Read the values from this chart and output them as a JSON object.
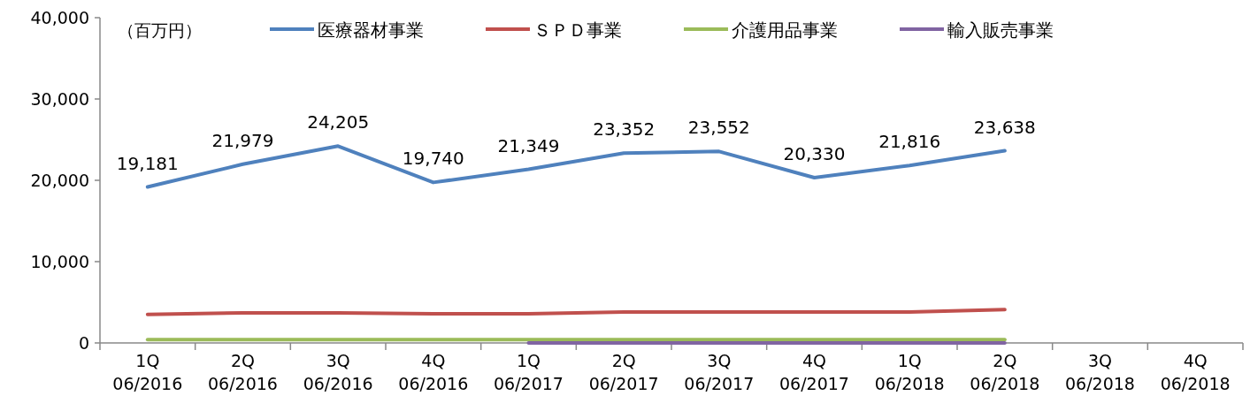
{
  "chart_data": {
    "type": "line",
    "categories": [
      "1Q\n06/2016",
      "2Q\n06/2016",
      "3Q\n06/2016",
      "4Q\n06/2016",
      "1Q\n06/2017",
      "2Q\n06/2017",
      "3Q\n06/2017",
      "4Q\n06/2017",
      "1Q\n06/2018",
      "2Q\n06/2018",
      "3Q\n06/2018",
      "4Q\n06/2018"
    ],
    "series": [
      {
        "name": "医療器材事業",
        "color": "#4f81bd",
        "values": [
          19181,
          21979,
          24205,
          19740,
          21349,
          23352,
          23552,
          20330,
          21816,
          23638,
          null,
          null
        ],
        "value_labels": [
          "19,181",
          "21,979",
          "24,205",
          "19,740",
          "21,349",
          "23,352",
          "23,552",
          "20,330",
          "21,816",
          "23,638",
          null,
          null
        ]
      },
      {
        "name": "ＳＰＤ事業",
        "color": "#c0504d",
        "values": [
          3500,
          3700,
          3700,
          3600,
          3600,
          3800,
          3800,
          3800,
          3800,
          4100,
          null,
          null
        ]
      },
      {
        "name": "介護用品事業",
        "color": "#9bbb59",
        "values": [
          400,
          400,
          400,
          400,
          400,
          400,
          400,
          400,
          400,
          400,
          null,
          null
        ]
      },
      {
        "name": "輸入販売事業",
        "color": "#8064a2",
        "values": [
          null,
          null,
          null,
          null,
          0,
          0,
          0,
          0,
          0,
          0,
          null,
          null
        ]
      }
    ],
    "ylim": [
      0,
      40000
    ],
    "yticks": [
      {
        "value": 0,
        "label": "0"
      },
      {
        "value": 10000,
        "label": "10,000"
      },
      {
        "value": 20000,
        "label": "20,000"
      },
      {
        "value": 30000,
        "label": "30,000"
      },
      {
        "value": 40000,
        "label": "40,000"
      }
    ],
    "annotations": [
      "（百万円）"
    ],
    "legend": "top",
    "grid": false
  }
}
